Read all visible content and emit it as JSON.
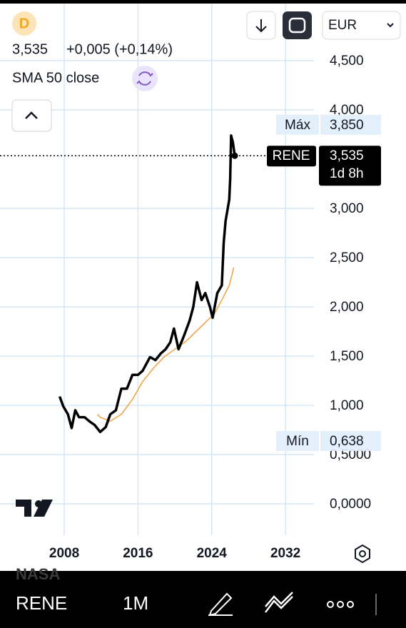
{
  "header": {
    "symbol_icon": "D",
    "price": "3,535",
    "change": "+0,005 (+0,14%)",
    "currency": "EUR"
  },
  "watermark": "NASA",
  "toolbar": {
    "symbol": "RENE",
    "interval": "1M"
  },
  "chart_data": {
    "type": "line",
    "xlim": [
      2001.03,
      2035.09
    ],
    "ylim": [
      -0.246,
      5.08
    ],
    "xticks": [
      2008,
      2016,
      2024,
      2032
    ],
    "yticks": [
      {
        "value": 4.5,
        "label": "4,500"
      },
      {
        "value": 4.0,
        "label": "4,000"
      },
      {
        "value": 3.0,
        "label": "3,000"
      },
      {
        "value": 2.5,
        "label": "2,500"
      },
      {
        "value": 2.0,
        "label": "2,000"
      },
      {
        "value": 1.5,
        "label": "1,500"
      },
      {
        "value": 1.0,
        "label": "1,000"
      },
      {
        "value": 0.5,
        "label": "0,5000"
      },
      {
        "value": 0,
        "label": "0,0000"
      }
    ],
    "grid": true,
    "series": [
      {
        "name": "RENE",
        "color": "#000000",
        "x": [
          2007.5,
          2007.9,
          2008.4,
          2008.8,
          2009.2,
          2009.6,
          2010.2,
          2010.7,
          2011.3,
          2011.9,
          2012.5,
          2013.0,
          2013.6,
          2014.2,
          2014.8,
          2015.4,
          2016.0,
          2016.5,
          2017.3,
          2017.9,
          2018.5,
          2019.0,
          2019.5,
          2019.9,
          2020.4,
          2021.0,
          2021.6,
          2022.0,
          2022.4,
          2022.9,
          2023.3,
          2023.8,
          2024.1,
          2024.6,
          2025.1,
          2025.3,
          2025.5,
          2025.9,
          2026.0,
          2026.1,
          2026.3,
          2026.5
        ],
        "values": [
          1.09,
          0.99,
          0.91,
          0.77,
          0.95,
          0.88,
          0.88,
          0.84,
          0.8,
          0.73,
          0.78,
          0.91,
          0.95,
          1.17,
          1.17,
          1.31,
          1.31,
          1.35,
          1.49,
          1.46,
          1.53,
          1.57,
          1.64,
          1.78,
          1.57,
          1.71,
          1.86,
          2.0,
          2.25,
          2.07,
          2.14,
          2.0,
          1.89,
          2.14,
          2.22,
          2.65,
          2.87,
          3.09,
          3.3,
          3.74,
          3.67,
          3.535
        ]
      },
      {
        "name": "SMA 50 close",
        "color": "#f0a54b",
        "x": [
          2011.6,
          2011.9,
          2013.0,
          2014.2,
          2015.4,
          2016.5,
          2017.7,
          2018.8,
          2020.0,
          2021.2,
          2022.3,
          2023.5,
          2024.3,
          2025.1,
          2025.9,
          2026.4
        ],
        "values": [
          0.91,
          0.88,
          0.84,
          0.91,
          1.06,
          1.24,
          1.38,
          1.49,
          1.57,
          1.65,
          1.75,
          1.86,
          1.93,
          2.07,
          2.22,
          2.4
        ]
      }
    ],
    "max": {
      "text": "Máx",
      "value": 3.85,
      "label": "3,850"
    },
    "last_price": {
      "value": 3.535,
      "label": "3,535",
      "countdown": "1d 8h"
    },
    "min": {
      "text": "Mín",
      "value": 0.638,
      "label": "0,638"
    }
  }
}
